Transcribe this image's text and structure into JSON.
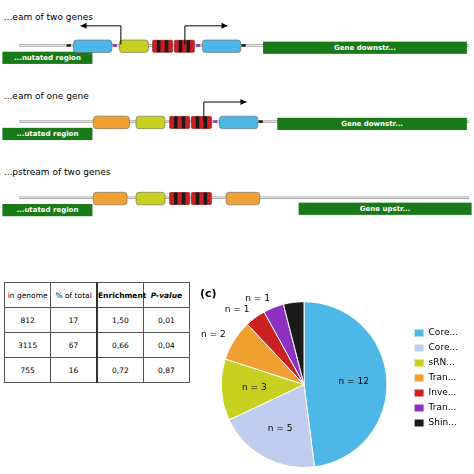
{
  "chart_data": [
    {
      "type": "diagram",
      "color": "#1a7a1a",
      "rows": [
        {
          "title": "...eam of two genes",
          "annotations": [
            "...nutated region",
            "Gene downstr..."
          ]
        },
        {
          "title": "...eam of one gene",
          "annotations": [
            "...utated region",
            "Gene downstr..."
          ]
        },
        {
          "title": "...pstream of two genes",
          "annotations": [
            "...utated region",
            "Gene upstr..."
          ]
        }
      ]
    },
    {
      "type": "table",
      "categories": [
        "in genome",
        "% of total",
        "Enrichment",
        "P-value"
      ],
      "rows": [
        [
          "812",
          "17",
          "1,50",
          "0,01"
        ],
        [
          "3115",
          "67",
          "0,66",
          "0,04"
        ],
        [
          "755",
          "16",
          "0,72",
          "0,87"
        ]
      ]
    },
    {
      "type": "pie",
      "title": "(c)",
      "categories": [
        "Core...",
        "Core...",
        "sRN...",
        "Tran...",
        "Inve...",
        "Tran...",
        "Shin..."
      ],
      "values": [
        12,
        5,
        3,
        2,
        1,
        1,
        1
      ],
      "colors": [
        "#4db8e8",
        "#c0ccee",
        "#c8d020",
        "#f0a030",
        "#cc2020",
        "#9030c0",
        "#1a1a1a"
      ],
      "data_labels": true,
      "value_labels": [
        "n = 12",
        "n = 5",
        "n = 3",
        "n = 2",
        "n = 1",
        "n = 1",
        null
      ],
      "legend": "right"
    }
  ]
}
